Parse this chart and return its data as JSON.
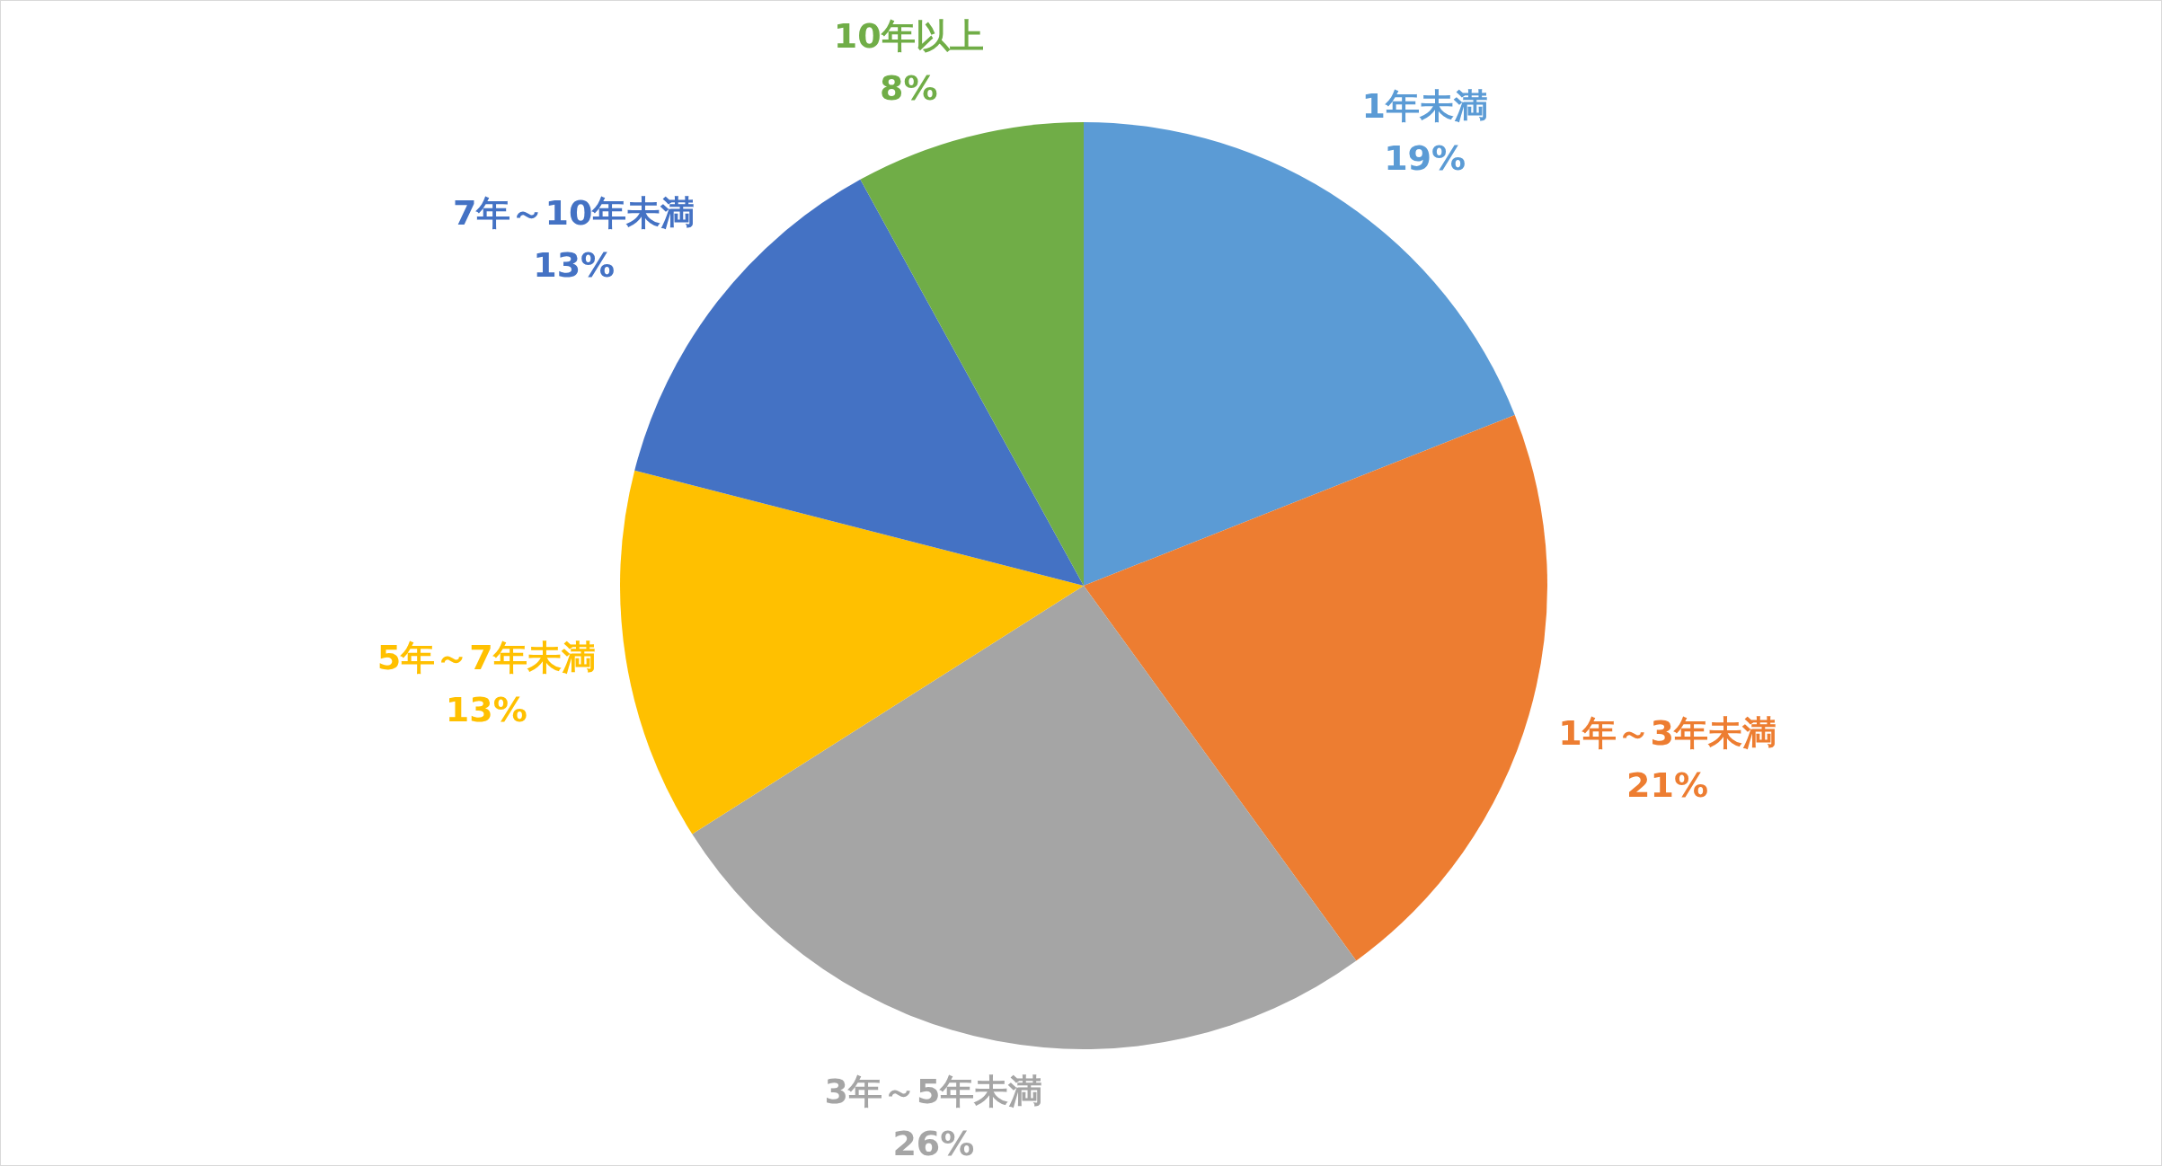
{
  "chart_data": {
    "type": "pie",
    "categories": [
      "1年未満",
      "1年～3年未満",
      "3年～5年未満",
      "5年～7年未満",
      "7年～10年未満",
      "10年以上"
    ],
    "values": [
      19,
      21,
      26,
      13,
      13,
      8
    ],
    "colors": [
      "#5b9bd5",
      "#ed7d31",
      "#a5a5a5",
      "#ffc000",
      "#4472c4",
      "#70ad47"
    ],
    "value_labels": [
      "19%",
      "21%",
      "26%",
      "13%",
      "13%",
      "8%"
    ]
  }
}
